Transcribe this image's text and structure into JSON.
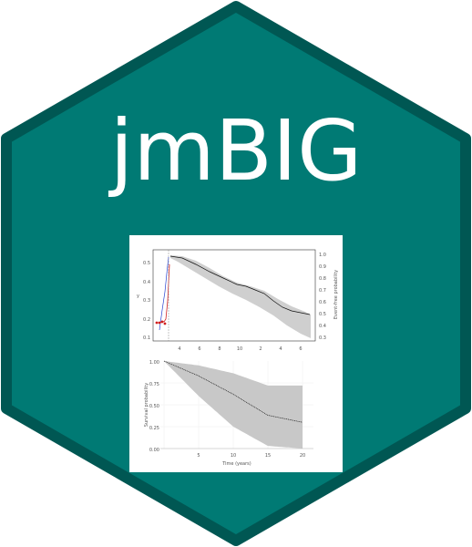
{
  "logo": {
    "title": "jmBIG",
    "colors": {
      "hex_fill": "#007a74",
      "hex_border": "#005753",
      "plot_panel": "#ffffff",
      "band": "#cfcfcf",
      "line": "#111111"
    }
  },
  "chart_data": [
    {
      "type": "line",
      "panel": "top",
      "yticks": [
        "0.5",
        "0.4",
        "0.3",
        "0.2",
        "0.1"
      ],
      "xticks": [
        "4",
        "6",
        "8",
        "10",
        "2",
        "4",
        "6"
      ],
      "y2ticks": [
        "1.0",
        "0.9",
        "0.8",
        "0.7",
        "0.6",
        "0.5",
        "0.4",
        "0.3"
      ],
      "y2label": "Event-free probability",
      "ylabel": "y"
    },
    {
      "type": "line",
      "panel": "bottom",
      "yticks": [
        "1.00",
        "0.75",
        "0.50",
        "0.25",
        "0.00"
      ],
      "xticks": [
        "5",
        "10",
        "15",
        "20"
      ],
      "ylabel": "Survival probability",
      "xlabel": "Time (years)",
      "x": [
        0,
        5,
        10,
        15,
        20
      ],
      "mean": [
        1.0,
        0.83,
        0.62,
        0.38,
        0.3
      ],
      "lower": [
        1.0,
        0.6,
        0.25,
        0.03,
        0.0
      ],
      "upper": [
        1.0,
        0.95,
        0.86,
        0.72,
        0.72
      ]
    }
  ]
}
